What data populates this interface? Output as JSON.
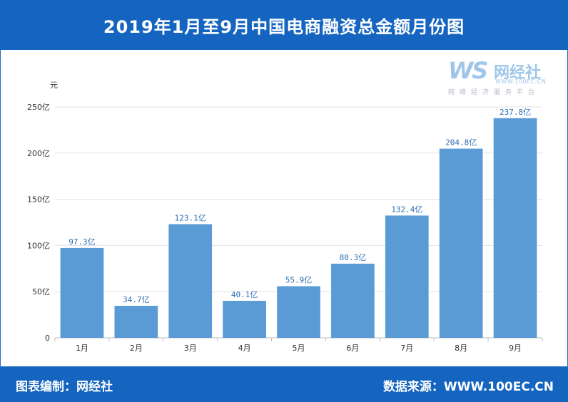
{
  "header": {
    "title": "2019年1月至9月中国电商融资总金额月份图"
  },
  "logo": {
    "mark": "WS",
    "name": "网经社",
    "url": "WWW.100EC.CN",
    "slogan": "网络经济服务平台"
  },
  "footer": {
    "left": "图表编制：网经社",
    "right": "数据来源：WWW.100EC.CN"
  },
  "colors": {
    "header": "#1565c0",
    "bar": "#5b9bd5",
    "label": "#2f6fb5"
  },
  "chart_data": {
    "type": "bar",
    "title": "2019年1月至9月中国电商融资总金额月份图",
    "ylabel": "元",
    "xlabel": "",
    "categories": [
      "1月",
      "2月",
      "3月",
      "4月",
      "5月",
      "6月",
      "7月",
      "8月",
      "9月"
    ],
    "values": [
      97.3,
      34.7,
      123.1,
      40.1,
      55.9,
      80.3,
      132.4,
      204.8,
      237.8
    ],
    "data_labels": [
      "97.3亿",
      "34.7亿",
      "123.1亿",
      "40.1亿",
      "55.9亿",
      "80.3亿",
      "132.4亿",
      "204.8亿",
      "237.8亿"
    ],
    "ylim": [
      0,
      250
    ],
    "yticks": [
      0,
      50,
      100,
      150,
      200,
      250
    ],
    "ytick_labels": [
      "0",
      "50亿",
      "100亿",
      "150亿",
      "200亿",
      "250亿"
    ],
    "grid": true,
    "legend": "none"
  }
}
